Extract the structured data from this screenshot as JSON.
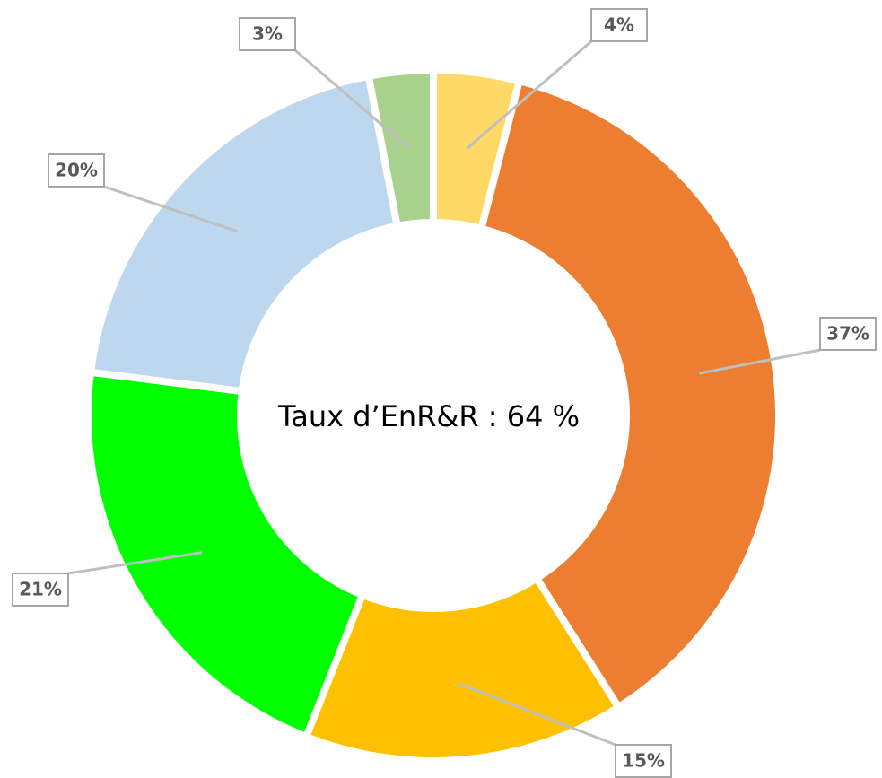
{
  "chart_data": {
    "type": "donut",
    "center_text": "Taux d’EnR&R : 64 %",
    "values": [
      4,
      37,
      15,
      21,
      20,
      3
    ],
    "value_labels": [
      "4%",
      "37%",
      "15%",
      "21%",
      "20%",
      "3%"
    ],
    "colors": [
      "#FFD966",
      "#ED7D31",
      "#FFC000",
      "#00FF00",
      "#BDD7EE",
      "#A9D18E"
    ]
  }
}
